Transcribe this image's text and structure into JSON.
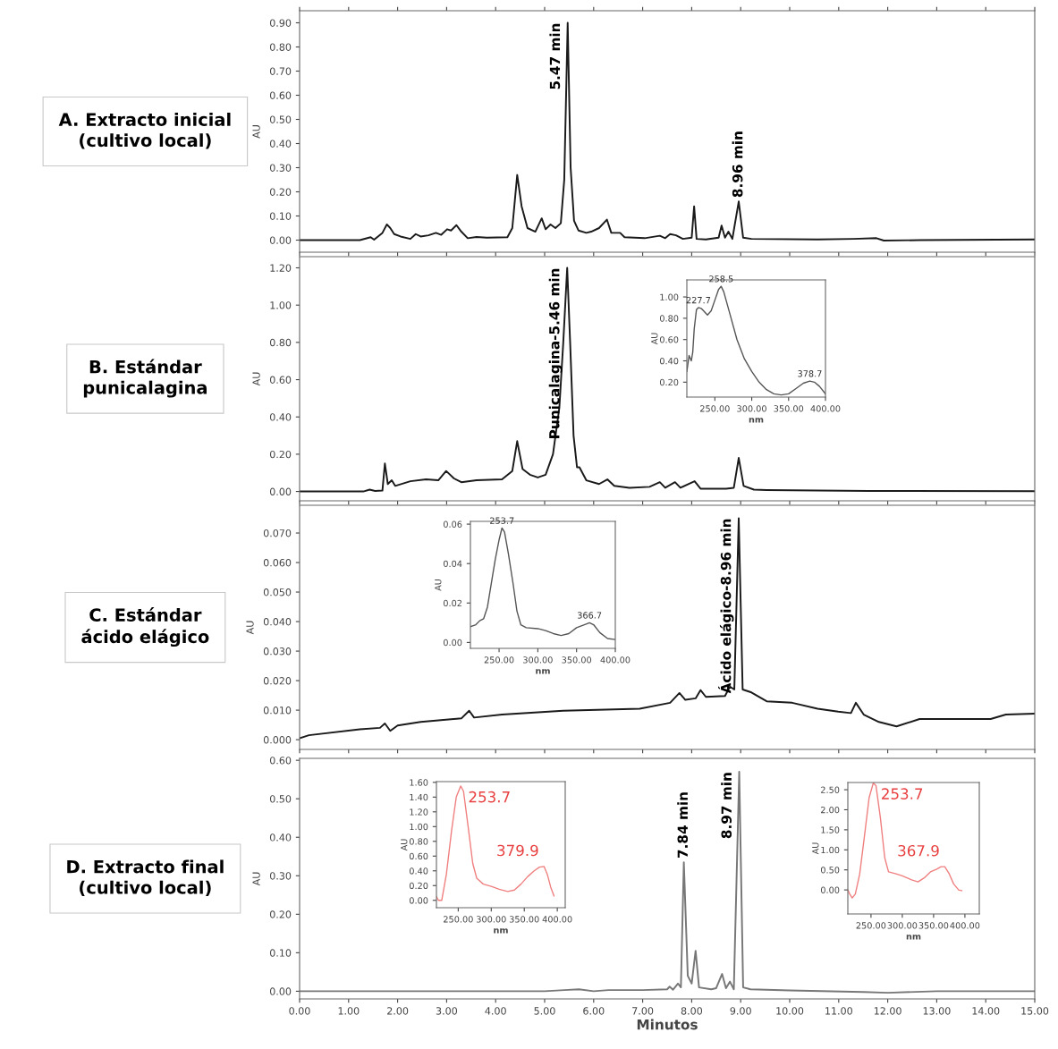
{
  "chart_data": [
    {
      "type": "line",
      "title": "A. Extracto inicial\n(cultivo local)",
      "ylabel": "AU",
      "xlim": [
        0,
        15
      ],
      "ylim": [
        -0.05,
        0.95
      ],
      "tick_labels": "y",
      "grid": false,
      "xticks": [
        0,
        1,
        2,
        3,
        4,
        5,
        6,
        7,
        8,
        9,
        10,
        11,
        12,
        13,
        14,
        15
      ],
      "yticks": [
        {
          "value": 0,
          "label": "0.00"
        },
        {
          "value": 0.1,
          "label": "0.10"
        },
        {
          "value": 0.2,
          "label": "0.20"
        },
        {
          "value": 0.3,
          "label": "0.30"
        },
        {
          "value": 0.4,
          "label": "0.40"
        },
        {
          "value": 0.5,
          "label": "0.50"
        },
        {
          "value": 0.6,
          "label": "0.60"
        },
        {
          "value": 0.7,
          "label": "0.70"
        },
        {
          "value": 0.8,
          "label": "0.80"
        },
        {
          "value": 0.9,
          "label": "0.90"
        }
      ],
      "annotations": [
        {
          "text": "5.47 min",
          "x": 5.47,
          "y": 0.9
        },
        {
          "text": "8.96 min",
          "x": 8.96,
          "y": 0.16
        }
      ],
      "series": [
        {
          "color": "#1a1a1a",
          "x": [
            0,
            1.23,
            1.45,
            1.52,
            1.69,
            1.78,
            1.85,
            1.93,
            2.06,
            2.26,
            2.37,
            2.47,
            2.63,
            2.78,
            2.89,
            3.01,
            3.09,
            3.2,
            3.3,
            3.43,
            3.61,
            3.82,
            4.24,
            4.34,
            4.44,
            4.53,
            4.65,
            4.81,
            4.94,
            5.02,
            5.12,
            5.22,
            5.33,
            5.4,
            5.47,
            5.53,
            5.6,
            5.69,
            5.85,
            5.95,
            6.11,
            6.27,
            6.36,
            6.54,
            6.63,
            7.04,
            7.35,
            7.46,
            7.56,
            7.68,
            7.82,
            8.0,
            8.05,
            8.1,
            8.29,
            8.55,
            8.61,
            8.68,
            8.75,
            8.83,
            8.96,
            9.05,
            9.22,
            10.57,
            11.3,
            11.77,
            11.92,
            12.65,
            15
          ],
          "values": [
            0,
            0,
            0.012,
            0.002,
            0.03,
            0.065,
            0.05,
            0.025,
            0.015,
            0.005,
            0.025,
            0.015,
            0.02,
            0.03,
            0.022,
            0.045,
            0.04,
            0.062,
            0.035,
            0.008,
            0.013,
            0.01,
            0.012,
            0.05,
            0.27,
            0.14,
            0.05,
            0.035,
            0.09,
            0.045,
            0.065,
            0.05,
            0.07,
            0.25,
            0.9,
            0.3,
            0.08,
            0.04,
            0.03,
            0.035,
            0.05,
            0.085,
            0.03,
            0.03,
            0.012,
            0.008,
            0.018,
            0.008,
            0.025,
            0.02,
            0.005,
            0.01,
            0.14,
            0.005,
            0.003,
            0.01,
            0.06,
            0.01,
            0.035,
            0.005,
            0.16,
            0.01,
            0.005,
            0.003,
            0.005,
            0.008,
            -0.002,
            0,
            0.003
          ]
        }
      ]
    },
    {
      "type": "line",
      "title": "B. Estándar\npunicalagina",
      "ylabel": "AU",
      "xlim": [
        0,
        15
      ],
      "ylim": [
        -0.05,
        1.26
      ],
      "tick_labels": "y",
      "grid": false,
      "xticks": [
        0,
        1,
        2,
        3,
        4,
        5,
        6,
        7,
        8,
        9,
        10,
        11,
        12,
        13,
        14,
        15
      ],
      "yticks": [
        {
          "value": 0,
          "label": "0.00"
        },
        {
          "value": 0.2,
          "label": "0.20"
        },
        {
          "value": 0.4,
          "label": "0.40"
        },
        {
          "value": 0.6,
          "label": "0.60"
        },
        {
          "value": 0.8,
          "label": "0.80"
        },
        {
          "value": 1.0,
          "label": "1.00"
        },
        {
          "value": 1.2,
          "label": "1.20"
        }
      ],
      "annotations": [
        {
          "text": "Punicalagina-5.46 min",
          "x": 5.46,
          "y": 1.2
        }
      ],
      "series": [
        {
          "color": "#1a1a1a",
          "x": [
            0,
            1.3,
            1.43,
            1.54,
            1.69,
            1.74,
            1.8,
            1.88,
            1.95,
            2.26,
            2.58,
            2.83,
            2.99,
            3.15,
            3.3,
            3.61,
            4.13,
            4.34,
            4.44,
            4.55,
            4.7,
            4.86,
            5.02,
            5.17,
            5.3,
            5.38,
            5.46,
            5.52,
            5.59,
            5.66,
            5.71,
            5.85,
            6.11,
            6.28,
            6.42,
            6.73,
            7.14,
            7.35,
            7.46,
            7.66,
            7.77,
            8.06,
            8.18,
            8.7,
            8.86,
            8.96,
            9.06,
            9.27,
            9.53,
            11.61,
            15
          ],
          "values": [
            0,
            0,
            0.01,
            0.003,
            0.005,
            0.15,
            0.04,
            0.06,
            0.03,
            0.055,
            0.065,
            0.06,
            0.11,
            0.07,
            0.05,
            0.06,
            0.065,
            0.11,
            0.27,
            0.12,
            0.09,
            0.075,
            0.09,
            0.2,
            0.45,
            0.8,
            1.2,
            0.8,
            0.3,
            0.13,
            0.13,
            0.06,
            0.04,
            0.065,
            0.03,
            0.02,
            0.025,
            0.05,
            0.02,
            0.05,
            0.02,
            0.055,
            0.015,
            0.015,
            0.02,
            0.18,
            0.03,
            0.01,
            0.008,
            0.003,
            0.002
          ]
        }
      ]
    },
    {
      "type": "line",
      "title": "C. Estándar\nácido elágico",
      "ylabel": "AU",
      "xlim": [
        0,
        15
      ],
      "ylim": [
        -0.0033,
        0.0794
      ],
      "tick_labels": "y",
      "grid": false,
      "xticks": [
        0,
        1,
        2,
        3,
        4,
        5,
        6,
        7,
        8,
        9,
        10,
        11,
        12,
        13,
        14,
        15
      ],
      "yticks": [
        {
          "value": 0,
          "label": "0.000"
        },
        {
          "value": 0.01,
          "label": "0.010"
        },
        {
          "value": 0.02,
          "label": "0.020"
        },
        {
          "value": 0.03,
          "label": "0.030"
        },
        {
          "value": 0.04,
          "label": "0.040"
        },
        {
          "value": 0.05,
          "label": "0.050"
        },
        {
          "value": 0.06,
          "label": "0.060"
        },
        {
          "value": 0.07,
          "label": "0.070"
        }
      ],
      "annotations": [
        {
          "text": "Ácido elágico-8.96 min",
          "x": 8.96,
          "y": 0.075
        }
      ],
      "series": [
        {
          "color": "#1a1a1a",
          "x": [
            0,
            0.19,
            1.23,
            1.64,
            1.74,
            1.85,
            2.0,
            2.47,
            3.3,
            3.46,
            3.56,
            4.13,
            5.38,
            6.94,
            7.56,
            7.75,
            7.87,
            8.08,
            8.18,
            8.29,
            8.68,
            8.78,
            8.87,
            8.96,
            9.04,
            9.22,
            9.53,
            10.05,
            10.57,
            10.99,
            11.25,
            11.35,
            11.51,
            11.82,
            12.18,
            12.65,
            14.1,
            14.41,
            15
          ],
          "values": [
            0.0005,
            0.0015,
            0.0035,
            0.004,
            0.0055,
            0.003,
            0.0048,
            0.006,
            0.0072,
            0.0098,
            0.0075,
            0.0085,
            0.0098,
            0.0105,
            0.0125,
            0.0158,
            0.0135,
            0.014,
            0.0168,
            0.0145,
            0.0148,
            0.018,
            0.017,
            0.075,
            0.017,
            0.016,
            0.013,
            0.0125,
            0.0105,
            0.0095,
            0.009,
            0.0125,
            0.0085,
            0.006,
            0.0045,
            0.007,
            0.007,
            0.0085,
            0.0088
          ]
        }
      ]
    },
    {
      "type": "line",
      "title": "D. Extracto final\n(cultivo local)",
      "ylabel": "AU",
      "xlabel": "Minutos",
      "xlim": [
        0,
        15
      ],
      "ylim": [
        -0.02,
        0.605
      ],
      "grid": false,
      "xticks": [
        {
          "value": 0,
          "label": "0.00"
        },
        {
          "value": 1,
          "label": "1.00"
        },
        {
          "value": 2,
          "label": "2.00"
        },
        {
          "value": 3,
          "label": "3.00"
        },
        {
          "value": 4,
          "label": "4.00"
        },
        {
          "value": 5,
          "label": "5.00"
        },
        {
          "value": 6,
          "label": "6.00"
        },
        {
          "value": 7,
          "label": "7.00"
        },
        {
          "value": 8,
          "label": "8.00"
        },
        {
          "value": 9,
          "label": "9.00"
        },
        {
          "value": 10,
          "label": "10.00"
        },
        {
          "value": 11,
          "label": "11.00"
        },
        {
          "value": 12,
          "label": "12.00"
        },
        {
          "value": 13,
          "label": "13.00"
        },
        {
          "value": 14,
          "label": "14.00"
        },
        {
          "value": 15,
          "label": "15.00"
        }
      ],
      "yticks": [
        {
          "value": 0,
          "label": "0.00"
        },
        {
          "value": 0.1,
          "label": "0.10"
        },
        {
          "value": 0.2,
          "label": "0.20"
        },
        {
          "value": 0.3,
          "label": "0.30"
        },
        {
          "value": 0.4,
          "label": "0.40"
        },
        {
          "value": 0.5,
          "label": "0.50"
        },
        {
          "value": 0.6,
          "label": "0.60"
        }
      ],
      "annotations": [
        {
          "text": "7.84 min",
          "x": 7.84,
          "y": 0.335
        },
        {
          "text": "8.97 min",
          "x": 8.97,
          "y": 0.57
        }
      ],
      "series": [
        {
          "color": "#777777",
          "x": [
            0,
            5.0,
            5.4,
            5.7,
            6.0,
            6.3,
            7.0,
            7.5,
            7.55,
            7.62,
            7.72,
            7.78,
            7.84,
            7.92,
            8.0,
            8.08,
            8.15,
            8.4,
            8.5,
            8.62,
            8.7,
            8.78,
            8.86,
            8.97,
            9.05,
            9.2,
            10.0,
            11.5,
            12.0,
            13.0,
            15
          ],
          "values": [
            0,
            0,
            0.003,
            0.005,
            0,
            0.003,
            0.003,
            0.005,
            0.012,
            0.004,
            0.02,
            0.01,
            0.335,
            0.04,
            0.02,
            0.105,
            0.01,
            0.005,
            0.008,
            0.045,
            0.008,
            0.025,
            0.005,
            0.57,
            0.01,
            0.005,
            0.002,
            -0.002,
            -0.004,
            0,
            0
          ]
        }
      ]
    },
    {
      "type": "line",
      "xlabel": "nm",
      "ylabel": "AU",
      "xlim": [
        212,
        400
      ],
      "ylim": [
        0.06,
        1.16
      ],
      "grid": false,
      "xticks": [
        {
          "value": 250,
          "label": "250.00"
        },
        {
          "value": 300,
          "label": "300.00"
        },
        {
          "value": 350,
          "label": "350.00"
        },
        {
          "value": 400,
          "label": "400.00"
        }
      ],
      "yticks": [
        {
          "value": 0.2,
          "label": "0.20"
        },
        {
          "value": 0.4,
          "label": "0.40"
        },
        {
          "value": 0.6,
          "label": "0.60"
        },
        {
          "value": 0.8,
          "label": "0.80"
        },
        {
          "value": 1.0,
          "label": "1.00"
        }
      ],
      "annotations": [
        {
          "text": "227.7",
          "x": 227.7,
          "y": 0.9
        },
        {
          "text": "258.5",
          "x": 258.5,
          "y": 1.1
        },
        {
          "text": "378.7",
          "x": 378.7,
          "y": 0.21
        }
      ],
      "series": [
        {
          "color": "#555555",
          "x": [
            212,
            215,
            218,
            220,
            222,
            225,
            227.7,
            232,
            236,
            240,
            245,
            250,
            255,
            258.5,
            262,
            270,
            280,
            290,
            300,
            310,
            320,
            330,
            340,
            350,
            360,
            370,
            378.7,
            385,
            392,
            400
          ],
          "values": [
            0.3,
            0.45,
            0.4,
            0.48,
            0.7,
            0.88,
            0.9,
            0.89,
            0.86,
            0.83,
            0.87,
            0.97,
            1.07,
            1.1,
            1.05,
            0.85,
            0.6,
            0.42,
            0.3,
            0.2,
            0.13,
            0.09,
            0.08,
            0.09,
            0.14,
            0.19,
            0.21,
            0.2,
            0.16,
            0.09
          ]
        }
      ]
    },
    {
      "type": "line",
      "xlabel": "nm",
      "ylabel": "AU",
      "xlim": [
        213,
        400
      ],
      "ylim": [
        -0.003,
        0.0614
      ],
      "grid": false,
      "xticks": [
        {
          "value": 250,
          "label": "250.00"
        },
        {
          "value": 300,
          "label": "300.00"
        },
        {
          "value": 350,
          "label": "350.00"
        },
        {
          "value": 400,
          "label": "400.00"
        }
      ],
      "yticks": [
        {
          "value": 0,
          "label": "0.00"
        },
        {
          "value": 0.02,
          "label": "0.02"
        },
        {
          "value": 0.04,
          "label": "0.04"
        },
        {
          "value": 0.06,
          "label": "0.06"
        }
      ],
      "annotations": [
        {
          "text": "253.7",
          "x": 253.7,
          "y": 0.058
        },
        {
          "text": "366.7",
          "x": 366.7,
          "y": 0.01
        }
      ],
      "series": [
        {
          "color": "#555555",
          "x": [
            213,
            220,
            225,
            230,
            235,
            240,
            245,
            250,
            253.7,
            257,
            262,
            268,
            273,
            278,
            285,
            300,
            310,
            320,
            330,
            340,
            350,
            360,
            366.7,
            372,
            380,
            390,
            400
          ],
          "values": [
            0.008,
            0.009,
            0.011,
            0.012,
            0.018,
            0.03,
            0.042,
            0.052,
            0.058,
            0.056,
            0.045,
            0.03,
            0.016,
            0.009,
            0.0075,
            0.007,
            0.006,
            0.0045,
            0.0035,
            0.0045,
            0.0075,
            0.009,
            0.01,
            0.009,
            0.005,
            0.002,
            0.0015
          ]
        }
      ]
    },
    {
      "type": "line",
      "xlabel": "nm",
      "ylabel": "AU",
      "xlim": [
        217,
        412
      ],
      "ylim": [
        -0.1,
        1.61
      ],
      "grid": false,
      "xticks": [
        {
          "value": 250,
          "label": "250.00"
        },
        {
          "value": 300,
          "label": "300.00"
        },
        {
          "value": 350,
          "label": "350.00"
        },
        {
          "value": 400,
          "label": "400.00"
        }
      ],
      "yticks": [
        {
          "value": 0,
          "label": "0.00"
        },
        {
          "value": 0.2,
          "label": "0.20"
        },
        {
          "value": 0.4,
          "label": "0.40"
        },
        {
          "value": 0.6,
          "label": "0.60"
        },
        {
          "value": 0.8,
          "label": "0.80"
        },
        {
          "value": 1.0,
          "label": "1.00"
        },
        {
          "value": 1.2,
          "label": "1.20"
        },
        {
          "value": 1.4,
          "label": "1.40"
        },
        {
          "value": 1.6,
          "label": "1.60"
        }
      ],
      "annotations": [
        {
          "text": "253.7",
          "x": 253.7,
          "y": 1.55
        },
        {
          "text": "379.9",
          "x": 379.9,
          "y": 0.46
        }
      ],
      "series": [
        {
          "color": "#f08080",
          "x": [
            217,
            220,
            225,
            232,
            240,
            247,
            253.7,
            258,
            265,
            272,
            278,
            288,
            300,
            312,
            325,
            335,
            345,
            355,
            365,
            373,
            379.9,
            385,
            390,
            395
          ],
          "values": [
            0.05,
            0,
            0,
            0.35,
            0.95,
            1.4,
            1.55,
            1.48,
            1.0,
            0.5,
            0.3,
            0.22,
            0.19,
            0.15,
            0.12,
            0.14,
            0.22,
            0.32,
            0.4,
            0.45,
            0.46,
            0.35,
            0.18,
            0.06
          ]
        }
      ]
    },
    {
      "type": "line",
      "xlabel": "nm",
      "ylabel": "AU",
      "xlim": [
        213,
        423
      ],
      "ylim": [
        -0.6,
        2.68
      ],
      "grid": false,
      "xticks": [
        {
          "value": 250,
          "label": "250.00"
        },
        {
          "value": 300,
          "label": "300.00"
        },
        {
          "value": 350,
          "label": "350.00"
        },
        {
          "value": 400,
          "label": "400.00"
        }
      ],
      "yticks": [
        {
          "value": 0,
          "label": "0.00"
        },
        {
          "value": 0.5,
          "label": "0.50"
        },
        {
          "value": 1.0,
          "label": "1.00"
        },
        {
          "value": 1.5,
          "label": "1.50"
        },
        {
          "value": 2.0,
          "label": "2.00"
        },
        {
          "value": 2.5,
          "label": "2.50"
        }
      ],
      "annotations": [
        {
          "text": "253.7",
          "x": 253.7,
          "y": 2.67
        },
        {
          "text": "367.9",
          "x": 367.9,
          "y": 0.58
        }
      ],
      "series": [
        {
          "color": "#f08080",
          "x": [
            213,
            216,
            220,
            225,
            232,
            240,
            247,
            253.7,
            258,
            265,
            272,
            278,
            290,
            300,
            315,
            325,
            335,
            345,
            355,
            362,
            367.9,
            375,
            382,
            390,
            395
          ],
          "values": [
            0,
            -0.1,
            -0.2,
            -0.1,
            0.4,
            1.4,
            2.3,
            2.67,
            2.6,
            1.8,
            0.8,
            0.45,
            0.4,
            0.35,
            0.25,
            0.2,
            0.3,
            0.45,
            0.52,
            0.58,
            0.58,
            0.4,
            0.15,
            0,
            -0.02
          ]
        }
      ]
    }
  ]
}
